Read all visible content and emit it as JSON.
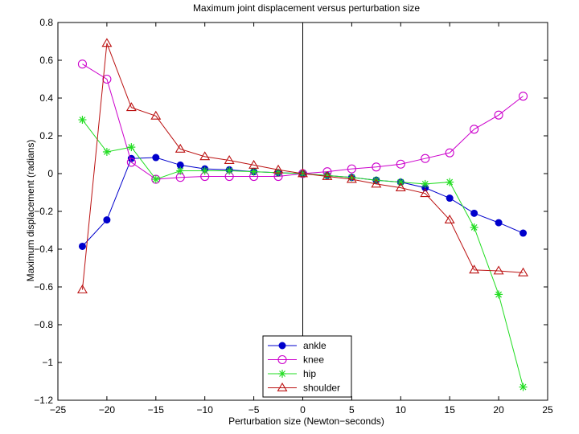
{
  "chart_data": {
    "type": "line",
    "title": "Maximum joint displacement versus perturbation size",
    "xlabel": "Perturbation size (Newton−seconds)",
    "ylabel": "Maximum displacement (radians)",
    "xlim": [
      -25,
      25
    ],
    "ylim": [
      -1.2,
      0.8
    ],
    "xticks": [
      -25,
      -20,
      -15,
      -10,
      -5,
      0,
      5,
      10,
      15,
      20,
      25
    ],
    "yticks": [
      -1.2,
      -1,
      -0.8,
      -0.6,
      -0.4,
      -0.2,
      0,
      0.2,
      0.4,
      0.6,
      0.8
    ],
    "xtick_labels": [
      "−25",
      "−20",
      "−15",
      "−10",
      "−5",
      "0",
      "5",
      "10",
      "15",
      "20",
      "25"
    ],
    "ytick_labels": [
      "−1.2",
      "−1",
      "−0.8",
      "−0.6",
      "−0.4",
      "−0.2",
      "0",
      "0.2",
      "0.4",
      "0.6",
      "0.8"
    ],
    "grid": false,
    "zero_line_x": 0,
    "legend_position": "bottom-center",
    "x": [
      -22.5,
      -20,
      -17.5,
      -15,
      -12.5,
      -10,
      -7.5,
      -5,
      -2.5,
      0,
      2.5,
      5,
      7.5,
      10,
      12.5,
      15,
      17.5,
      20,
      22.5
    ],
    "series": [
      {
        "name": "ankle",
        "color": "#0000cc",
        "marker": "filled-circle",
        "values": [
          -0.385,
          -0.245,
          0.08,
          0.085,
          0.045,
          0.025,
          0.02,
          0.01,
          0.005,
          0,
          -0.01,
          -0.02,
          -0.035,
          -0.045,
          -0.075,
          -0.13,
          -0.21,
          -0.26,
          -0.315
        ]
      },
      {
        "name": "knee",
        "color": "#cc00cc",
        "marker": "open-circle",
        "values": [
          0.58,
          0.5,
          0.06,
          -0.03,
          -0.02,
          -0.015,
          -0.015,
          -0.015,
          -0.015,
          0,
          0.01,
          0.025,
          0.035,
          0.05,
          0.08,
          0.11,
          0.235,
          0.31,
          0.41
        ]
      },
      {
        "name": "hip",
        "color": "#22dd22",
        "marker": "asterisk",
        "values": [
          0.285,
          0.115,
          0.14,
          -0.03,
          0.015,
          0.015,
          0.015,
          0.01,
          0.005,
          0,
          -0.01,
          -0.02,
          -0.035,
          -0.045,
          -0.055,
          -0.045,
          -0.285,
          -0.64,
          -1.13
        ]
      },
      {
        "name": "shoulder",
        "color": "#bb1111",
        "marker": "open-triangle",
        "values": [
          -0.615,
          0.69,
          0.35,
          0.305,
          0.13,
          0.09,
          0.07,
          0.045,
          0.02,
          0,
          -0.015,
          -0.03,
          -0.055,
          -0.075,
          -0.105,
          -0.245,
          -0.51,
          -0.515,
          -0.525
        ]
      }
    ]
  }
}
